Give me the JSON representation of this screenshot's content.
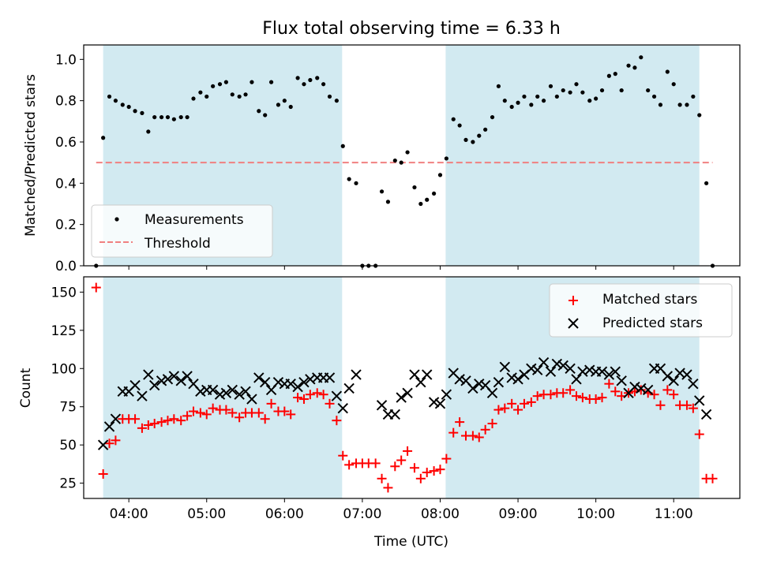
{
  "chart_data": [
    {
      "type": "scatter",
      "title": "Flux total observing time = 6.33 h",
      "xlabel": "",
      "ylabel": "Matched/Predicted stars",
      "xlim": [
        3.42,
        11.85
      ],
      "ylim": [
        0,
        1.07
      ],
      "yticks": [
        "0.0",
        "0.2",
        "0.4",
        "0.6",
        "0.8",
        "1.0"
      ],
      "shaded_intervals": [
        [
          3.67,
          6.74
        ],
        [
          8.07,
          11.33
        ]
      ],
      "threshold": 0.5,
      "legend": [
        "Measurements",
        "Threshold"
      ],
      "legend_position": "lower-left",
      "series": [
        {
          "name": "Measurements",
          "x": [
            3.58,
            3.67,
            3.75,
            3.83,
            3.92,
            4.0,
            4.08,
            4.17,
            4.25,
            4.33,
            4.42,
            4.5,
            4.58,
            4.67,
            4.75,
            4.83,
            4.92,
            5.0,
            5.08,
            5.17,
            5.25,
            5.33,
            5.42,
            5.5,
            5.58,
            5.67,
            5.75,
            5.83,
            5.92,
            6.0,
            6.08,
            6.17,
            6.25,
            6.33,
            6.42,
            6.5,
            6.58,
            6.67,
            6.75,
            6.83,
            6.92,
            7.0,
            7.08,
            7.17,
            7.25,
            7.33,
            7.42,
            7.5,
            7.58,
            7.67,
            7.75,
            7.83,
            7.92,
            8.0,
            8.08,
            8.17,
            8.25,
            8.33,
            8.42,
            8.5,
            8.58,
            8.67,
            8.75,
            8.83,
            8.92,
            9.0,
            9.08,
            9.17,
            9.25,
            9.33,
            9.42,
            9.5,
            9.58,
            9.67,
            9.75,
            9.83,
            9.92,
            10.0,
            10.08,
            10.17,
            10.25,
            10.33,
            10.42,
            10.5,
            10.58,
            10.67,
            10.75,
            10.83,
            10.92,
            11.0,
            11.08,
            11.17,
            11.25,
            11.33,
            11.42,
            11.5
          ],
          "y": [
            0.0,
            0.62,
            0.82,
            0.8,
            0.78,
            0.77,
            0.75,
            0.74,
            0.65,
            0.72,
            0.72,
            0.72,
            0.71,
            0.72,
            0.72,
            0.81,
            0.84,
            0.82,
            0.87,
            0.88,
            0.89,
            0.83,
            0.82,
            0.83,
            0.89,
            0.75,
            0.73,
            0.89,
            0.78,
            0.8,
            0.77,
            0.91,
            0.88,
            0.9,
            0.91,
            0.88,
            0.82,
            0.8,
            0.58,
            0.42,
            0.4,
            0.0,
            0.0,
            0.0,
            0.36,
            0.31,
            0.51,
            0.5,
            0.55,
            0.38,
            0.3,
            0.32,
            0.35,
            0.44,
            0.52,
            0.71,
            0.68,
            0.61,
            0.6,
            0.63,
            0.66,
            0.72,
            0.87,
            0.8,
            0.77,
            0.79,
            0.82,
            0.78,
            0.82,
            0.8,
            0.87,
            0.82,
            0.85,
            0.84,
            0.88,
            0.84,
            0.8,
            0.81,
            0.85,
            0.92,
            0.93,
            0.85,
            0.97,
            0.96,
            1.01,
            0.85,
            0.82,
            0.78,
            0.94,
            0.88,
            0.78,
            0.78,
            0.82,
            0.73,
            0.4,
            0.0
          ],
          "color": "#000000"
        },
        {
          "name": "Threshold",
          "x": [
            3.58,
            11.5
          ],
          "y": [
            0.5,
            0.5
          ],
          "color": "#f08080",
          "style": "dashed"
        }
      ]
    },
    {
      "type": "scatter",
      "title": "",
      "xlabel": "Time (UTC)",
      "ylabel": "Count",
      "xlim": [
        3.42,
        11.85
      ],
      "ylim": [
        15,
        160
      ],
      "yticks": [
        "25",
        "50",
        "75",
        "100",
        "125",
        "150"
      ],
      "xticks": [
        "04:00",
        "05:00",
        "06:00",
        "07:00",
        "08:00",
        "09:00",
        "10:00",
        "11:00"
      ],
      "shaded_intervals": [
        [
          3.67,
          6.74
        ],
        [
          8.07,
          11.33
        ]
      ],
      "legend": [
        "Matched stars",
        "Predicted stars"
      ],
      "legend_position": "upper-right",
      "series": [
        {
          "name": "Matched stars",
          "marker": "+",
          "color": "#ff0000",
          "x": [
            3.58,
            3.67,
            3.75,
            3.83,
            3.92,
            4.0,
            4.08,
            4.17,
            4.25,
            4.33,
            4.42,
            4.5,
            4.58,
            4.67,
            4.75,
            4.83,
            4.92,
            5.0,
            5.08,
            5.17,
            5.25,
            5.33,
            5.42,
            5.5,
            5.58,
            5.67,
            5.75,
            5.83,
            5.92,
            6.0,
            6.08,
            6.17,
            6.25,
            6.33,
            6.42,
            6.5,
            6.58,
            6.67,
            6.75,
            6.83,
            6.92,
            7.0,
            7.08,
            7.17,
            7.25,
            7.33,
            7.42,
            7.5,
            7.58,
            7.67,
            7.75,
            7.83,
            7.92,
            8.0,
            8.08,
            8.17,
            8.25,
            8.33,
            8.42,
            8.5,
            8.58,
            8.67,
            8.75,
            8.83,
            8.92,
            9.0,
            9.08,
            9.17,
            9.25,
            9.33,
            9.42,
            9.5,
            9.58,
            9.67,
            9.75,
            9.83,
            9.92,
            10.0,
            10.08,
            10.17,
            10.25,
            10.33,
            10.42,
            10.5,
            10.58,
            10.67,
            10.75,
            10.83,
            10.92,
            11.0,
            11.08,
            11.17,
            11.25,
            11.33,
            11.42,
            11.5
          ],
          "y": [
            153,
            31,
            51,
            53,
            67,
            67,
            67,
            61,
            63,
            64,
            65,
            66,
            67,
            66,
            69,
            72,
            71,
            70,
            74,
            73,
            73,
            71,
            68,
            71,
            71,
            71,
            67,
            77,
            72,
            72,
            70,
            81,
            80,
            83,
            84,
            83,
            77,
            66,
            43,
            37,
            38,
            38,
            38,
            38,
            28,
            22,
            36,
            40,
            46,
            35,
            28,
            32,
            33,
            34,
            41,
            58,
            65,
            56,
            56,
            55,
            60,
            64,
            73,
            74,
            77,
            73,
            77,
            78,
            82,
            83,
            83,
            84,
            84,
            86,
            82,
            81,
            80,
            80,
            81,
            90,
            85,
            82,
            84,
            85,
            86,
            84,
            83,
            76,
            86,
            83,
            76,
            76,
            74,
            57,
            28,
            28
          ]
        },
        {
          "name": "Predicted stars",
          "marker": "x",
          "color": "#000000",
          "x": [
            3.67,
            3.75,
            3.83,
            3.92,
            4.0,
            4.08,
            4.17,
            4.25,
            4.33,
            4.42,
            4.5,
            4.58,
            4.67,
            4.75,
            4.83,
            4.92,
            5.0,
            5.08,
            5.17,
            5.25,
            5.33,
            5.42,
            5.5,
            5.58,
            5.67,
            5.75,
            5.83,
            5.92,
            6.0,
            6.08,
            6.17,
            6.25,
            6.33,
            6.42,
            6.5,
            6.58,
            6.67,
            6.75,
            6.83,
            6.92,
            7.25,
            7.33,
            7.42,
            7.5,
            7.58,
            7.67,
            7.75,
            7.83,
            7.92,
            8.0,
            8.08,
            8.17,
            8.25,
            8.33,
            8.42,
            8.5,
            8.58,
            8.67,
            8.75,
            8.83,
            8.92,
            9.0,
            9.08,
            9.17,
            9.25,
            9.33,
            9.42,
            9.5,
            9.58,
            9.67,
            9.75,
            9.83,
            9.92,
            10.0,
            10.08,
            10.17,
            10.25,
            10.33,
            10.42,
            10.5,
            10.58,
            10.67,
            10.75,
            10.83,
            10.92,
            11.0,
            11.08,
            11.17,
            11.25,
            11.33,
            11.42
          ],
          "y": [
            50,
            62,
            67,
            85,
            85,
            89,
            82,
            96,
            89,
            92,
            93,
            95,
            92,
            95,
            90,
            85,
            86,
            86,
            83,
            84,
            86,
            83,
            85,
            80,
            94,
            91,
            86,
            91,
            90,
            90,
            88,
            91,
            93,
            94,
            94,
            94,
            82,
            74,
            87,
            96,
            76,
            70,
            70,
            81,
            84,
            96,
            91,
            96,
            78,
            77,
            83,
            97,
            93,
            92,
            87,
            90,
            89,
            84,
            91,
            101,
            94,
            93,
            96,
            100,
            99,
            104,
            98,
            103,
            102,
            100,
            93,
            98,
            99,
            98,
            98,
            96,
            98,
            92,
            84,
            88,
            87,
            86,
            100,
            100,
            95,
            92,
            97,
            96,
            90,
            79,
            70
          ]
        }
      ]
    }
  ]
}
